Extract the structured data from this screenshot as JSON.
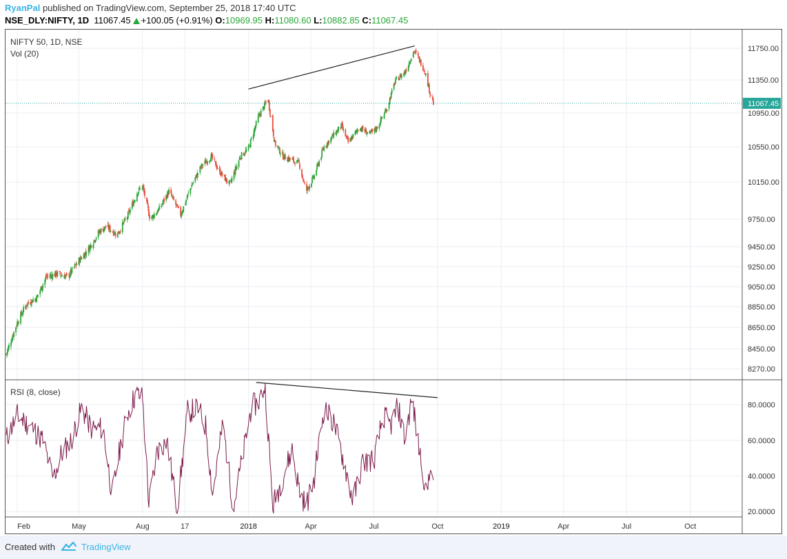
{
  "header": {
    "user": "RyanPal",
    "published": "published on TradingView.com, September 25, 2018 17:40 UTC",
    "symbol": "NSE_DLY:NIFTY, 1D",
    "last": "11067.45",
    "change": "+100.05 (+0.91%)",
    "o_label": "O:",
    "o_value": "10969.95",
    "h_label": "H:",
    "h_value": "11080.60",
    "l_label": "L:",
    "l_value": "10882.85",
    "c_label": "C:",
    "c_value": "11067.45"
  },
  "footer": {
    "created": "Created with",
    "brand": "TradingView"
  },
  "colors": {
    "up": "#26a637",
    "down": "#e74c3c",
    "rsi": "#7b1a4a",
    "price_line": "#26a69a",
    "price_tag": "#26a69a",
    "grid": "#e9eef3",
    "axis_text": "#333333"
  },
  "chart_data": [
    {
      "type": "candlestick",
      "title": "NIFTY 50, 1D, NSE",
      "subtitle": "Vol (20)",
      "ylim": [
        8150,
        11900
      ],
      "y_ticks": [
        "11750.00",
        "11350.00",
        "10950.00",
        "10550.00",
        "10150.00",
        "9750.00",
        "9450.00",
        "9250.00",
        "9050.00",
        "8850.00",
        "8650.00",
        "8450.00",
        "8270.00"
      ],
      "last_price_label": "11067.45",
      "last_price": 11067.45,
      "x_ticks": [
        "Feb",
        "May",
        "Aug",
        "17",
        "2018",
        "Apr",
        "Jul",
        "Oct",
        "2019",
        "Apr",
        "Jul",
        "Oct"
      ],
      "x_range": [
        "2017-01-15",
        "2019-12-15"
      ],
      "x_tick_dates": [
        "2017-02-01",
        "2017-05-01",
        "2017-08-01",
        "2017-10-01",
        "2018-01-01",
        "2018-04-01",
        "2018-07-01",
        "2018-10-01",
        "2019-01-01",
        "2019-04-01",
        "2019-07-01",
        "2019-10-01"
      ],
      "close_path": [
        [
          "2017-01-16",
          8400
        ],
        [
          "2017-02-01",
          8700
        ],
        [
          "2017-02-15",
          8880
        ],
        [
          "2017-03-01",
          8940
        ],
        [
          "2017-03-15",
          9150
        ],
        [
          "2017-03-31",
          9180
        ],
        [
          "2017-04-15",
          9150
        ],
        [
          "2017-05-01",
          9310
        ],
        [
          "2017-05-15",
          9430
        ],
        [
          "2017-05-31",
          9620
        ],
        [
          "2017-06-10",
          9670
        ],
        [
          "2017-06-25",
          9580
        ],
        [
          "2017-07-10",
          9780
        ],
        [
          "2017-07-25",
          10050
        ],
        [
          "2017-08-01",
          10100
        ],
        [
          "2017-08-12",
          9750
        ],
        [
          "2017-08-25",
          9860
        ],
        [
          "2017-09-08",
          10050
        ],
        [
          "2017-09-25",
          9800
        ],
        [
          "2017-10-10",
          10100
        ],
        [
          "2017-10-25",
          10330
        ],
        [
          "2017-11-08",
          10440
        ],
        [
          "2017-11-20",
          10270
        ],
        [
          "2017-12-05",
          10120
        ],
        [
          "2017-12-20",
          10440
        ],
        [
          "2018-01-01",
          10530
        ],
        [
          "2018-01-15",
          10900
        ],
        [
          "2018-01-29",
          11120
        ],
        [
          "2018-02-08",
          10590
        ],
        [
          "2018-02-20",
          10440
        ],
        [
          "2018-03-05",
          10400
        ],
        [
          "2018-03-15",
          10360
        ],
        [
          "2018-03-25",
          10050
        ],
        [
          "2018-04-05",
          10200
        ],
        [
          "2018-04-20",
          10550
        ],
        [
          "2018-05-05",
          10700
        ],
        [
          "2018-05-15",
          10800
        ],
        [
          "2018-05-25",
          10600
        ],
        [
          "2018-06-10",
          10780
        ],
        [
          "2018-06-25",
          10700
        ],
        [
          "2018-07-05",
          10770
        ],
        [
          "2018-07-20",
          11010
        ],
        [
          "2018-08-01",
          11340
        ],
        [
          "2018-08-15",
          11450
        ],
        [
          "2018-08-28",
          11720
        ],
        [
          "2018-09-05",
          11600
        ],
        [
          "2018-09-13",
          11450
        ],
        [
          "2018-09-20",
          11200
        ],
        [
          "2018-09-25",
          11067
        ]
      ],
      "trendline": {
        "from": [
          "2018-01-01",
          11240
        ],
        "to": [
          "2018-08-29",
          11780
        ]
      }
    },
    {
      "type": "line",
      "title": "RSI (8, close)",
      "ylim": [
        17,
        94
      ],
      "y_ticks": [
        "80.0000",
        "60.0000",
        "40.0000",
        "20.0000"
      ],
      "x_range": [
        "2017-01-15",
        "2019-12-15"
      ],
      "series": [
        {
          "values": [
            [
              "2017-01-16",
              61
            ],
            [
              "2017-02-01",
              74
            ],
            [
              "2017-02-20",
              68
            ],
            [
              "2017-03-10",
              60
            ],
            [
              "2017-03-25",
              38
            ],
            [
              "2017-04-05",
              52
            ],
            [
              "2017-04-20",
              60
            ],
            [
              "2017-05-05",
              78
            ],
            [
              "2017-05-20",
              66
            ],
            [
              "2017-06-05",
              67
            ],
            [
              "2017-06-18",
              29
            ],
            [
              "2017-06-30",
              57
            ],
            [
              "2017-07-10",
              75
            ],
            [
              "2017-07-22",
              86
            ],
            [
              "2017-08-01",
              84
            ],
            [
              "2017-08-10",
              24
            ],
            [
              "2017-08-22",
              54
            ],
            [
              "2017-09-05",
              60
            ],
            [
              "2017-09-20",
              21
            ],
            [
              "2017-10-05",
              76
            ],
            [
              "2017-10-20",
              78
            ],
            [
              "2017-11-01",
              67
            ],
            [
              "2017-11-10",
              29
            ],
            [
              "2017-11-25",
              70
            ],
            [
              "2017-12-10",
              22
            ],
            [
              "2017-12-25",
              54
            ],
            [
              "2018-01-05",
              79
            ],
            [
              "2018-01-15",
              81
            ],
            [
              "2018-01-25",
              91
            ],
            [
              "2018-02-05",
              23
            ],
            [
              "2018-02-20",
              40
            ],
            [
              "2018-03-05",
              55
            ],
            [
              "2018-03-15",
              33
            ],
            [
              "2018-03-25",
              23
            ],
            [
              "2018-04-05",
              37
            ],
            [
              "2018-04-20",
              78
            ],
            [
              "2018-05-05",
              69
            ],
            [
              "2018-05-20",
              46
            ],
            [
              "2018-06-01",
              26
            ],
            [
              "2018-06-15",
              48
            ],
            [
              "2018-07-01",
              49
            ],
            [
              "2018-07-15",
              74
            ],
            [
              "2018-07-25",
              68
            ],
            [
              "2018-08-05",
              79
            ],
            [
              "2018-08-15",
              60
            ],
            [
              "2018-08-25",
              84
            ],
            [
              "2018-09-03",
              58
            ],
            [
              "2018-09-10",
              43
            ],
            [
              "2018-09-15",
              26
            ],
            [
              "2018-09-20",
              47
            ],
            [
              "2018-09-25",
              32
            ]
          ]
        }
      ],
      "trendline": {
        "from": [
          "2018-01-12",
          92.5
        ],
        "to": [
          "2018-10-01",
          84
        ]
      }
    }
  ]
}
